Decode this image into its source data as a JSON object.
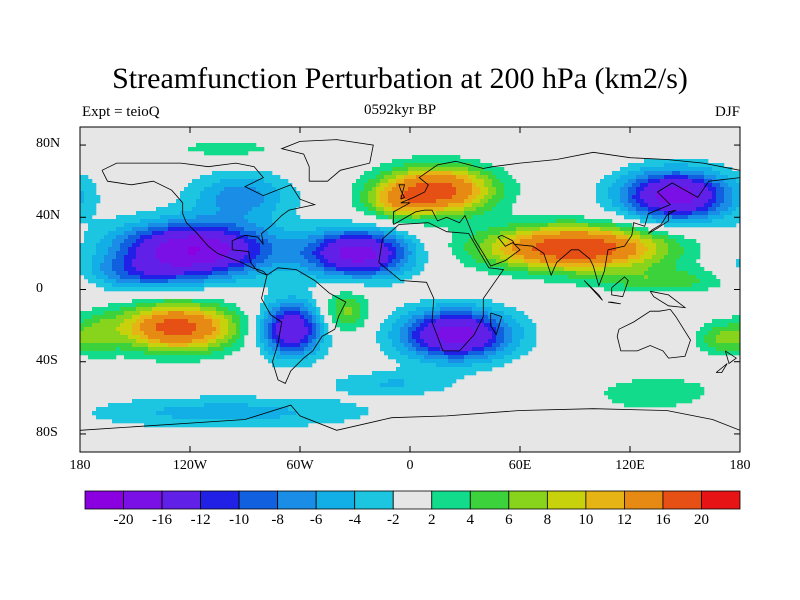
{
  "title": "Streamfunction Perturbation at 200 hPa (km2/s)",
  "subtitle_left": "Expt = teioQ",
  "subtitle_center": "0592kyr BP",
  "subtitle_right": "DJF",
  "map": {
    "projection": "cylindrical-equidistant",
    "lon_range": [
      -180,
      180
    ],
    "lat_range": [
      -90,
      90
    ],
    "background_color": "#e6e6e6",
    "coastline_color": "#000000",
    "y_ticks": [
      {
        "label": "80N",
        "lat": 80
      },
      {
        "label": "40N",
        "lat": 40
      },
      {
        "label": "0",
        "lat": 0
      },
      {
        "label": "40S",
        "lat": -40
      },
      {
        "label": "80S",
        "lat": -80
      }
    ],
    "x_ticks": [
      {
        "label": "180",
        "lon": -180
      },
      {
        "label": "120W",
        "lon": -120
      },
      {
        "label": "60W",
        "lon": -60
      },
      {
        "label": "0",
        "lon": 0
      },
      {
        "label": "60E",
        "lon": 60
      },
      {
        "label": "120E",
        "lon": 120
      },
      {
        "label": "180",
        "lon": 180
      }
    ]
  },
  "colorbar": {
    "colors": [
      "#8a00e0",
      "#7a10e6",
      "#6020e8",
      "#2020e6",
      "#1060e0",
      "#1a8ee6",
      "#12aee6",
      "#1cc6e0",
      "#e6e6e6",
      "#12dc8c",
      "#3cd23c",
      "#88d41c",
      "#c8d20c",
      "#e6b414",
      "#e68a14",
      "#e65014",
      "#e61414"
    ],
    "labels": [
      "-20",
      "-16",
      "-12",
      "-10",
      "-8",
      "-6",
      "-4",
      "-2",
      "2",
      "4",
      "6",
      "8",
      "10",
      "12",
      "16",
      "20"
    ]
  },
  "field_blobs": [
    {
      "name": "n-pacific-high",
      "lon": -118,
      "lat": 22,
      "rlon": 42,
      "rlat": 15,
      "peak": -20
    },
    {
      "name": "atlantic-subtropical-low",
      "lon": -28,
      "lat": 20,
      "rlon": 28,
      "rlat": 13,
      "peak": -18
    },
    {
      "name": "n-america-low",
      "lon": -92,
      "lat": 52,
      "rlon": 28,
      "rlat": 13,
      "peak": -7
    },
    {
      "name": "tropical-pacific-band",
      "lon": -150,
      "lat": 8,
      "rlon": 30,
      "rlat": 9,
      "peak": -6
    },
    {
      "name": "europe-high",
      "lon": 15,
      "lat": 55,
      "rlon": 30,
      "rlat": 13,
      "peak": 18
    },
    {
      "name": "n-atlantic-east-lobe",
      "lon": -8,
      "lat": 48,
      "rlon": 18,
      "rlat": 10,
      "peak": 6
    },
    {
      "name": "asia-high",
      "lon": 90,
      "lat": 23,
      "rlon": 48,
      "rlat": 12,
      "peak": 20
    },
    {
      "name": "pacific-low",
      "lon": 145,
      "lat": 52,
      "rlon": 30,
      "rlat": 14,
      "peak": -18
    },
    {
      "name": "se-pacific-high",
      "lon": -127,
      "lat": -21,
      "rlon": 32,
      "rlat": 13,
      "peak": 18
    },
    {
      "name": "s-america-low",
      "lon": -65,
      "lat": -22,
      "rlon": 17,
      "rlat": 15,
      "peak": -16
    },
    {
      "name": "s-atlantic-high",
      "lon": -35,
      "lat": -12,
      "rlon": 13,
      "rlat": 12,
      "peak": 7
    },
    {
      "name": "s-indian-low",
      "lon": 25,
      "lat": -25,
      "rlon": 30,
      "rlat": 14,
      "peak": -18
    },
    {
      "name": "maritime-band",
      "lon": 140,
      "lat": 5,
      "rlon": 40,
      "rlat": 7,
      "peak": 5
    },
    {
      "name": "australia-high",
      "lon": 170,
      "lat": -27,
      "rlon": 14,
      "rlat": 9,
      "peak": 6
    },
    {
      "name": "s-pacific-band",
      "lon": -100,
      "lat": -68,
      "rlon": 80,
      "rlat": 9,
      "peak": -5
    },
    {
      "name": "s-ocean-positive",
      "lon": 135,
      "lat": -58,
      "rlon": 35,
      "rlat": 10,
      "peak": 4
    },
    {
      "name": "s-ocean-east-low",
      "lon": -10,
      "lat": -52,
      "rlon": 35,
      "rlat": 7,
      "peak": -4
    },
    {
      "name": "arctic-green",
      "lon": -100,
      "lat": 78,
      "rlon": 25,
      "rlat": 4,
      "peak": 4
    },
    {
      "name": "w-pacific-blob",
      "lon": -170,
      "lat": -25,
      "rlon": 12,
      "rlat": 12,
      "peak": 4
    }
  ],
  "coastlines": [
    [
      [
        -168,
        66
      ],
      [
        -160,
        70
      ],
      [
        -140,
        70
      ],
      [
        -125,
        70
      ],
      [
        -110,
        68
      ],
      [
        -95,
        70
      ],
      [
        -85,
        68
      ],
      [
        -80,
        62
      ],
      [
        -90,
        57
      ],
      [
        -80,
        52
      ],
      [
        -65,
        58
      ],
      [
        -60,
        50
      ],
      [
        -52,
        47
      ],
      [
        -66,
        44
      ],
      [
        -70,
        41
      ],
      [
        -76,
        35
      ],
      [
        -81,
        31
      ],
      [
        -80,
        25
      ],
      [
        -83,
        29
      ],
      [
        -90,
        30
      ],
      [
        -97,
        27
      ],
      [
        -97,
        22
      ],
      [
        -88,
        21
      ],
      [
        -87,
        15
      ],
      [
        -83,
        10
      ],
      [
        -78,
        8
      ],
      [
        -80,
        10
      ],
      [
        -86,
        12
      ],
      [
        -92,
        15
      ],
      [
        -105,
        20
      ],
      [
        -110,
        24
      ],
      [
        -117,
        32
      ],
      [
        -122,
        37
      ],
      [
        -124,
        42
      ],
      [
        -124,
        48
      ],
      [
        -130,
        55
      ],
      [
        -140,
        60
      ],
      [
        -152,
        58
      ],
      [
        -165,
        60
      ],
      [
        -168,
        66
      ]
    ],
    [
      [
        -78,
        8
      ],
      [
        -72,
        12
      ],
      [
        -62,
        11
      ],
      [
        -52,
        5
      ],
      [
        -44,
        -2
      ],
      [
        -35,
        -7
      ],
      [
        -39,
        -15
      ],
      [
        -41,
        -22
      ],
      [
        -48,
        -26
      ],
      [
        -53,
        -34
      ],
      [
        -58,
        -38
      ],
      [
        -65,
        -45
      ],
      [
        -68,
        -52
      ],
      [
        -72,
        -50
      ],
      [
        -75,
        -40
      ],
      [
        -72,
        -30
      ],
      [
        -70,
        -18
      ],
      [
        -76,
        -14
      ],
      [
        -81,
        -5
      ],
      [
        -78,
        8
      ]
    ],
    [
      [
        -17,
        15
      ],
      [
        -15,
        28
      ],
      [
        -6,
        36
      ],
      [
        10,
        37
      ],
      [
        20,
        32
      ],
      [
        32,
        31
      ],
      [
        43,
        12
      ],
      [
        51,
        11
      ],
      [
        40,
        -5
      ],
      [
        40,
        -15
      ],
      [
        35,
        -25
      ],
      [
        27,
        -34
      ],
      [
        18,
        -34
      ],
      [
        12,
        -18
      ],
      [
        13,
        -5
      ],
      [
        9,
        4
      ],
      [
        -5,
        5
      ],
      [
        -17,
        15
      ]
    ],
    [
      [
        -9,
        36
      ],
      [
        -9,
        43
      ],
      [
        0,
        48
      ],
      [
        -5,
        48
      ],
      [
        2,
        51
      ],
      [
        8,
        54
      ],
      [
        10,
        58
      ],
      [
        5,
        62
      ],
      [
        15,
        69
      ],
      [
        25,
        71
      ],
      [
        40,
        67
      ],
      [
        45,
        68
      ],
      [
        60,
        70
      ],
      [
        80,
        72
      ],
      [
        100,
        76
      ],
      [
        120,
        73
      ],
      [
        140,
        72
      ],
      [
        160,
        70
      ],
      [
        180,
        66
      ],
      [
        180,
        62
      ],
      [
        163,
        60
      ],
      [
        157,
        51
      ],
      [
        143,
        59
      ],
      [
        135,
        54
      ],
      [
        142,
        47
      ],
      [
        130,
        42
      ],
      [
        128,
        35
      ],
      [
        122,
        37
      ],
      [
        121,
        30
      ],
      [
        117,
        24
      ],
      [
        108,
        22
      ],
      [
        106,
        10
      ],
      [
        103,
        2
      ],
      [
        100,
        13
      ],
      [
        98,
        17
      ],
      [
        92,
        22
      ],
      [
        88,
        22
      ],
      [
        80,
        15
      ],
      [
        77,
        8
      ],
      [
        73,
        20
      ],
      [
        67,
        24
      ],
      [
        57,
        25
      ],
      [
        56,
        27
      ],
      [
        50,
        30
      ],
      [
        48,
        29
      ],
      [
        52,
        24
      ],
      [
        56,
        26
      ],
      [
        60,
        22
      ],
      [
        52,
        16
      ],
      [
        44,
        13
      ],
      [
        40,
        20
      ],
      [
        35,
        28
      ],
      [
        34,
        31
      ],
      [
        30,
        41
      ],
      [
        27,
        37
      ],
      [
        20,
        40
      ],
      [
        15,
        38
      ],
      [
        12,
        44
      ],
      [
        8,
        44
      ],
      [
        3,
        43
      ],
      [
        -9,
        36
      ]
    ],
    [
      [
        114,
        -22
      ],
      [
        113,
        -26
      ],
      [
        115,
        -34
      ],
      [
        124,
        -34
      ],
      [
        131,
        -31
      ],
      [
        138,
        -34
      ],
      [
        141,
        -38
      ],
      [
        150,
        -37
      ],
      [
        153,
        -28
      ],
      [
        145,
        -15
      ],
      [
        142,
        -11
      ],
      [
        136,
        -12
      ],
      [
        131,
        -12
      ],
      [
        122,
        -18
      ],
      [
        114,
        -22
      ]
    ],
    [
      [
        -55,
        60
      ],
      [
        -45,
        60
      ],
      [
        -38,
        66
      ],
      [
        -22,
        70
      ],
      [
        -20,
        80
      ],
      [
        -40,
        83
      ],
      [
        -60,
        82
      ],
      [
        -70,
        78
      ],
      [
        -58,
        75
      ],
      [
        -55,
        68
      ],
      [
        -55,
        60
      ]
    ],
    [
      [
        -180,
        -78
      ],
      [
        -150,
        -76
      ],
      [
        -120,
        -74
      ],
      [
        -90,
        -72
      ],
      [
        -65,
        -64
      ],
      [
        -60,
        -70
      ],
      [
        -40,
        -78
      ],
      [
        -10,
        -71
      ],
      [
        20,
        -70
      ],
      [
        60,
        -67
      ],
      [
        100,
        -66
      ],
      [
        140,
        -67
      ],
      [
        165,
        -72
      ],
      [
        180,
        -78
      ]
    ],
    [
      [
        -5,
        50
      ],
      [
        -3,
        58
      ],
      [
        -6,
        58
      ],
      [
        -5,
        55
      ],
      [
        -3,
        51
      ],
      [
        -5,
        50
      ]
    ],
    [
      [
        130,
        31
      ],
      [
        135,
        34
      ],
      [
        141,
        38
      ],
      [
        141,
        43
      ],
      [
        145,
        44
      ],
      [
        140,
        41
      ],
      [
        137,
        36
      ],
      [
        132,
        33
      ],
      [
        130,
        31
      ]
    ],
    [
      [
        95,
        5
      ],
      [
        105,
        -6
      ],
      [
        103,
        -3
      ],
      [
        95,
        5
      ]
    ],
    [
      [
        108,
        -7
      ],
      [
        115,
        -8
      ],
      [
        110,
        -7
      ],
      [
        108,
        -7
      ]
    ],
    [
      [
        110,
        1
      ],
      [
        117,
        7
      ],
      [
        119,
        5
      ],
      [
        116,
        -4
      ],
      [
        110,
        -3
      ],
      [
        110,
        1
      ]
    ],
    [
      [
        131,
        -1
      ],
      [
        141,
        -3
      ],
      [
        150,
        -10
      ],
      [
        141,
        -9
      ],
      [
        133,
        -4
      ],
      [
        131,
        -1
      ]
    ],
    [
      [
        44,
        -13
      ],
      [
        50,
        -15
      ],
      [
        47,
        -25
      ],
      [
        44,
        -20
      ],
      [
        44,
        -13
      ]
    ],
    [
      [
        172,
        -34
      ],
      [
        178,
        -38
      ],
      [
        174,
        -41
      ],
      [
        172,
        -34
      ]
    ],
    [
      [
        167,
        -46
      ],
      [
        173,
        -41
      ],
      [
        170,
        -46
      ],
      [
        167,
        -46
      ]
    ]
  ]
}
